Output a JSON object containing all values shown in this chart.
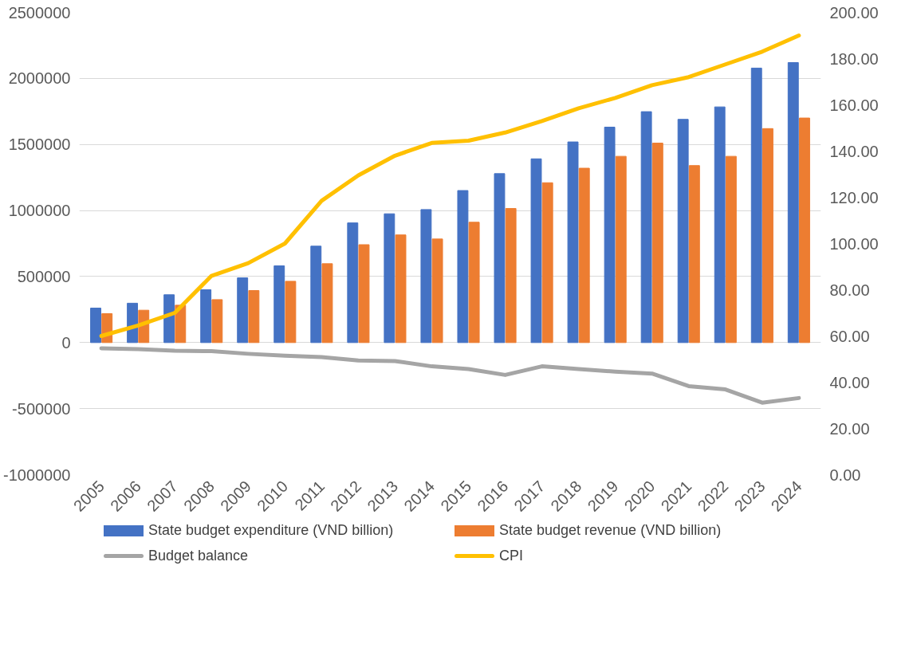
{
  "chart_data": {
    "type": "bar",
    "categories": [
      "2005",
      "2006",
      "2007",
      "2008",
      "2009",
      "2010",
      "2011",
      "2012",
      "2013",
      "2014",
      "2015",
      "2016",
      "2017",
      "2018",
      "2019",
      "2020",
      "2021",
      "2022",
      "2023",
      "2024"
    ],
    "series": [
      {
        "name": "State budget expenditure (VND billion)",
        "color": "#4472c4",
        "values": [
          261000,
          298000,
          362000,
          400000,
          490000,
          581000,
          730000,
          906000,
          975000,
          1007000,
          1151000,
          1279000,
          1391000,
          1519000,
          1631000,
          1748000,
          1690000,
          1784000,
          2078000,
          2120000
        ]
      },
      {
        "name": "State budget revenue (VND billion)",
        "color": "#ed7d31",
        "values": [
          219000,
          245000,
          283000,
          325000,
          394000,
          464000,
          597000,
          741000,
          815000,
          784000,
          911000,
          1015000,
          1210000,
          1320000,
          1410000,
          1510000,
          1340000,
          1410000,
          1620000,
          1700000
        ]
      },
      {
        "name": "Budget balance",
        "type": "line",
        "color": "#a5a5a5",
        "values": [
          -43000,
          -50000,
          -62000,
          -65000,
          -85000,
          -100000,
          -110000,
          -135000,
          -140000,
          -180000,
          -200000,
          -245000,
          -180000,
          -200000,
          -220000,
          -235000,
          -330000,
          -355000,
          -455000,
          -420000
        ]
      },
      {
        "name": "CPI",
        "type": "line",
        "axis": "y2",
        "color": "#ffc000",
        "values": [
          60,
          64.5,
          70,
          86,
          91.5,
          100,
          118.5,
          129.5,
          138,
          143.5,
          144.5,
          148,
          153,
          158.5,
          163,
          168.5,
          172,
          177.5,
          183,
          190
        ]
      }
    ],
    "ylim": [
      -1000000,
      2500000
    ],
    "yticks": [
      -1000000,
      -500000,
      0,
      500000,
      1000000,
      1500000,
      2000000,
      2500000
    ],
    "y2lim": [
      0,
      200
    ],
    "y2ticks": [
      {
        "value": 0,
        "label": "0.00"
      },
      {
        "value": 20,
        "label": "20.00"
      },
      {
        "value": 40,
        "label": "40.00"
      },
      {
        "value": 60,
        "label": "60.00"
      },
      {
        "value": 80,
        "label": "80.00"
      },
      {
        "value": 100,
        "label": "100.00"
      },
      {
        "value": 120,
        "label": "120.00"
      },
      {
        "value": 140,
        "label": "140.00"
      },
      {
        "value": 160,
        "label": "160.00"
      },
      {
        "value": 180,
        "label": "180.00"
      },
      {
        "value": 200,
        "label": "200.00"
      }
    ],
    "grid": "y",
    "legend": "bottom",
    "line_style": "solid"
  }
}
